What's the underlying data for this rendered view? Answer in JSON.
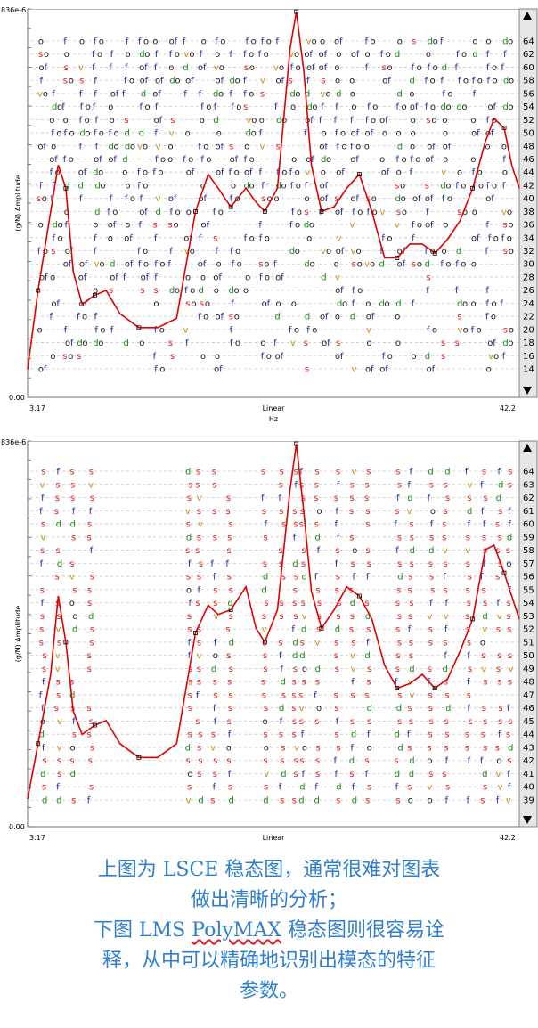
{
  "charts_meta": {
    "colors": {
      "curve": "#e00000",
      "grid": "#c8c8c8",
      "stable": "#e02020",
      "freq": "#2a2a9a",
      "damp": "#1a8a1a",
      "vec": "#c89010",
      "other": "#202020"
    }
  },
  "caption": {
    "line1": "上图为 LSCE 稳态图，通常很难对图表",
    "line2": "做出清晰的分析；",
    "line3a": "下图 LMS ",
    "line3b": "PolyMAX",
    "line3c": " 稳态图则很容易诠",
    "line4": "释，从中可以精确地识别出模态的特征",
    "line5": "参数。"
  },
  "chart_data": [
    {
      "type": "line",
      "name": "LSCE stabilization diagram",
      "ylabel": "(g/N) Amplitude",
      "xlabel": "Hz",
      "x_scale_label": "Linear",
      "x_tick_left": "3.17",
      "x_tick_right": "42.2",
      "y_top_label": "836e-6",
      "y_bottom_label": "0.00",
      "xlim": [
        3.17,
        42.2
      ],
      "ylim": [
        0,
        0.000836
      ],
      "right_axis_orders": [
        64,
        62,
        60,
        58,
        56,
        54,
        52,
        50,
        48,
        46,
        44,
        42,
        40,
        38,
        36,
        34,
        32,
        30,
        28,
        26,
        24,
        22,
        20,
        18,
        16,
        14
      ],
      "frf_curve": [
        [
          3.17,
          6e-05
        ],
        [
          4.0,
          0.00023
        ],
        [
          5.0,
          0.0004
        ],
        [
          5.6,
          0.0005
        ],
        [
          6.2,
          0.00045
        ],
        [
          6.8,
          0.00027
        ],
        [
          7.5,
          0.0002
        ],
        [
          8.5,
          0.00022
        ],
        [
          9.4,
          0.00023
        ],
        [
          10.5,
          0.00018
        ],
        [
          12.0,
          0.00015
        ],
        [
          13.5,
          0.00015
        ],
        [
          15.0,
          0.00017
        ],
        [
          16.5,
          0.0004
        ],
        [
          17.5,
          0.00048
        ],
        [
          18.3,
          0.00045
        ],
        [
          19.3,
          0.00041
        ],
        [
          20.5,
          0.00045
        ],
        [
          21.3,
          0.00042
        ],
        [
          22.0,
          0.0004
        ],
        [
          23.0,
          0.00045
        ],
        [
          24.0,
          0.00075
        ],
        [
          24.5,
          0.00083
        ],
        [
          25.1,
          0.0007
        ],
        [
          25.7,
          0.0005
        ],
        [
          26.5,
          0.0004
        ],
        [
          27.5,
          0.00041
        ],
        [
          28.5,
          0.00045
        ],
        [
          29.5,
          0.00048
        ],
        [
          30.5,
          0.0004
        ],
        [
          31.5,
          0.0003
        ],
        [
          32.5,
          0.0003
        ],
        [
          33.5,
          0.00033
        ],
        [
          34.5,
          0.00033
        ],
        [
          35.5,
          0.00031
        ],
        [
          36.5,
          0.00034
        ],
        [
          37.5,
          0.00038
        ],
        [
          38.5,
          0.00045
        ],
        [
          39.5,
          0.00055
        ],
        [
          40.2,
          0.0006
        ],
        [
          41.0,
          0.00058
        ],
        [
          41.6,
          0.0005
        ],
        [
          42.2,
          0.00045
        ]
      ],
      "stab_columns": [
        4.0,
        5.0,
        6.0,
        7.2,
        8.4,
        9.6,
        10.8,
        12.0,
        13.2,
        14.4,
        15.6,
        16.8,
        18.0,
        19.2,
        20.4,
        21.6,
        22.8,
        24.0,
        25.2,
        26.4,
        27.6,
        28.8,
        30.0,
        31.2,
        32.4,
        33.6,
        34.8,
        36.0,
        37.2,
        38.4,
        39.6,
        40.8
      ],
      "symbol_legend": {
        "stable": "s",
        "freq_stable": "f",
        "damp_stable": "d",
        "vec_stable": "v",
        "new_pole": "o"
      }
    },
    {
      "type": "line",
      "name": "LMS PolyMAX stabilization diagram",
      "ylabel": "(g/N) Amplitude",
      "x_scale_label": "Linear",
      "x_tick_left": "3.17",
      "x_tick_right": "42.2",
      "y_top_label": "836e-6",
      "y_bottom_label": "0.00",
      "xlim": [
        3.17,
        42.2
      ],
      "ylim": [
        0,
        0.000836
      ],
      "right_axis_orders": [
        64,
        63,
        62,
        61,
        60,
        59,
        58,
        57,
        56,
        55,
        54,
        53,
        52,
        51,
        50,
        49,
        48,
        47,
        46,
        45,
        44,
        43,
        42,
        41,
        40,
        39
      ],
      "frf_curve": [
        [
          3.17,
          6e-05
        ],
        [
          4.0,
          0.00018
        ],
        [
          5.0,
          0.00033
        ],
        [
          5.6,
          0.0005
        ],
        [
          6.2,
          0.0004
        ],
        [
          6.8,
          0.00025
        ],
        [
          7.5,
          0.0002
        ],
        [
          8.5,
          0.00022
        ],
        [
          9.4,
          0.00023
        ],
        [
          10.5,
          0.00018
        ],
        [
          12.0,
          0.00015
        ],
        [
          13.5,
          0.00015
        ],
        [
          15.0,
          0.00018
        ],
        [
          16.5,
          0.00042
        ],
        [
          17.5,
          0.00048
        ],
        [
          18.3,
          0.00046
        ],
        [
          19.3,
          0.00047
        ],
        [
          20.5,
          0.00052
        ],
        [
          21.3,
          0.00043
        ],
        [
          22.0,
          0.0004
        ],
        [
          23.0,
          0.00047
        ],
        [
          24.0,
          0.00073
        ],
        [
          24.5,
          0.00083
        ],
        [
          25.1,
          0.00068
        ],
        [
          25.7,
          0.00051
        ],
        [
          26.5,
          0.00043
        ],
        [
          27.5,
          0.00047
        ],
        [
          28.5,
          0.00052
        ],
        [
          29.5,
          0.0005
        ],
        [
          30.5,
          0.00045
        ],
        [
          31.5,
          0.00035
        ],
        [
          32.5,
          0.0003
        ],
        [
          33.5,
          0.00031
        ],
        [
          34.5,
          0.00033
        ],
        [
          35.5,
          0.0003
        ],
        [
          36.5,
          0.00032
        ],
        [
          37.5,
          0.00038
        ],
        [
          38.5,
          0.00045
        ],
        [
          39.5,
          0.0006
        ],
        [
          40.2,
          0.00061
        ],
        [
          41.0,
          0.00055
        ],
        [
          41.6,
          0.0005
        ],
        [
          42.2,
          0.00045
        ]
      ],
      "stab_columns": [
        4.2,
        5.4,
        6.6,
        8.0,
        15.8,
        16.6,
        17.8,
        19.0,
        21.8,
        23.2,
        24.2,
        24.8,
        26.0,
        27.6,
        28.8,
        30.0,
        32.4,
        33.4,
        35.0,
        36.2,
        38.0,
        39.2,
        40.4,
        41.2
      ],
      "symbol_legend": {
        "stable": "s",
        "freq_stable": "f",
        "damp_stable": "d",
        "vec_stable": "v",
        "new_pole": "o"
      }
    }
  ]
}
